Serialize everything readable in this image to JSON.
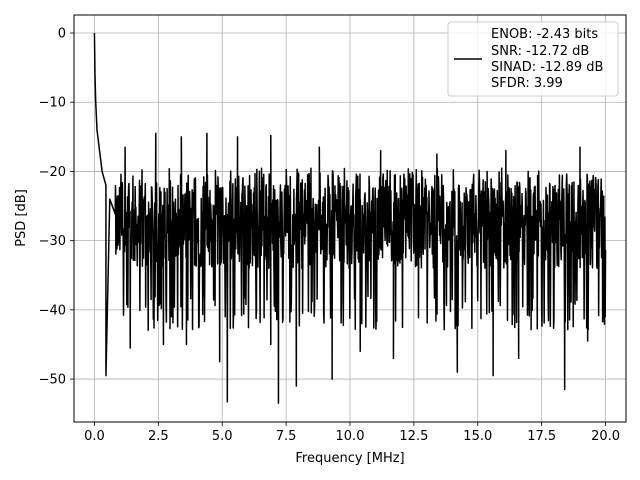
{
  "chart_data": {
    "type": "line",
    "xlabel": "Frequency [MHz]",
    "ylabel": "PSD [dB]",
    "xlim": [
      -0.8,
      20.8
    ],
    "ylim": [
      -56.2,
      2.6
    ],
    "xticks": [
      0.0,
      2.5,
      5.0,
      7.5,
      10.0,
      12.5,
      15.0,
      17.5,
      20.0
    ],
    "xtick_labels": [
      "0.0",
      "2.5",
      "5.0",
      "7.5",
      "10.0",
      "12.5",
      "15.0",
      "17.5",
      "20.0"
    ],
    "yticks": [
      0,
      -10,
      -20,
      -30,
      -40,
      -50
    ],
    "ytick_labels": [
      "0",
      "−10",
      "−20",
      "−30",
      "−40",
      "−50"
    ],
    "grid": true,
    "legend": {
      "placement": "upper right",
      "lines": [
        "ENOB: -2.43 bits",
        "SNR: -12.72 dB",
        "SINAD: -12.89 dB",
        "SFDR: 3.99"
      ]
    },
    "series": [
      {
        "color": "#000000",
        "description_points": {
          "x": [
            0.0,
            0.02,
            0.05,
            0.1,
            0.2,
            0.3,
            0.45,
            0.6,
            0.8
          ],
          "y": [
            0.0,
            -6.0,
            -10.0,
            -14.0,
            -17.0,
            -20.0,
            -22.0,
            -24.0,
            -26.0
          ]
        },
        "noise_floor": {
          "x_start": 0.1,
          "x_end": 20.0,
          "mean_db": -28.0,
          "upper_env_db": -21.0,
          "lower_env_db": -38.0
        },
        "deep_nulls": [
          {
            "x": 0.45,
            "y": -49.5
          },
          {
            "x": 1.4,
            "y": -45.5
          },
          {
            "x": 2.7,
            "y": -45.0
          },
          {
            "x": 3.6,
            "y": -45.0
          },
          {
            "x": 4.9,
            "y": -47.5
          },
          {
            "x": 5.2,
            "y": -53.3
          },
          {
            "x": 6.9,
            "y": -45.0
          },
          {
            "x": 7.2,
            "y": -53.5
          },
          {
            "x": 7.9,
            "y": -51.0
          },
          {
            "x": 9.3,
            "y": -50.0
          },
          {
            "x": 10.4,
            "y": -46.0
          },
          {
            "x": 11.7,
            "y": -47.0
          },
          {
            "x": 14.2,
            "y": -49.0
          },
          {
            "x": 15.6,
            "y": -49.5
          },
          {
            "x": 16.6,
            "y": -47.0
          },
          {
            "x": 18.4,
            "y": -51.5
          },
          {
            "x": 19.3,
            "y": -44.5
          }
        ],
        "peaks": [
          {
            "x": 1.2,
            "y": -16.5
          },
          {
            "x": 2.4,
            "y": -14.5
          },
          {
            "x": 3.4,
            "y": -15.0
          },
          {
            "x": 4.4,
            "y": -14.5
          },
          {
            "x": 5.6,
            "y": -15.0
          },
          {
            "x": 6.9,
            "y": -14.8
          },
          {
            "x": 8.8,
            "y": -16.5
          },
          {
            "x": 11.2,
            "y": -17.0
          },
          {
            "x": 13.4,
            "y": -17.5
          },
          {
            "x": 16.1,
            "y": -17.0
          },
          {
            "x": 19.0,
            "y": -16.5
          }
        ]
      }
    ]
  }
}
